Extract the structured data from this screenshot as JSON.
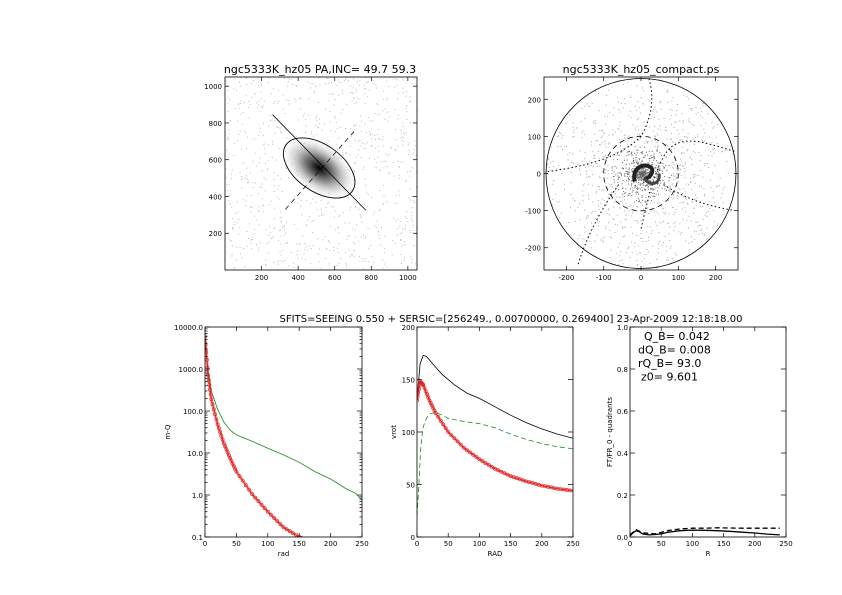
{
  "chart_data": [
    {
      "type": "image",
      "title": "ngc5333K_hz05 PA,INC= 49.7 59.3",
      "xlim": [
        0,
        1050
      ],
      "ylim": [
        0,
        1050
      ],
      "xticks": [
        200,
        400,
        600,
        800,
        1000
      ],
      "yticks": [
        200,
        400,
        600,
        800,
        1000
      ],
      "ellipse": {
        "cx": 515,
        "cy": 555,
        "rx": 260,
        "ry": 150,
        "angle_deg": -40
      }
    },
    {
      "type": "image",
      "title": "ngc5333K_hz05_compact.ps",
      "xlim": [
        -260,
        260
      ],
      "ylim": [
        -260,
        260
      ],
      "xticks": [
        -200,
        -100,
        0,
        100,
        200
      ],
      "yticks": [
        -200,
        -100,
        0,
        100,
        200
      ]
    },
    {
      "type": "line",
      "xlabel": "rad",
      "ylabel": "m-Q",
      "xlim": [
        0,
        250
      ],
      "ylim": [
        0.1,
        10000
      ],
      "yscale": "log",
      "xticks": [
        0,
        50,
        100,
        150,
        200,
        250
      ],
      "ytick_labels": [
        "0.1",
        "1.0",
        "10.0",
        "100.0",
        "1000.0",
        "10000.0"
      ],
      "series": [
        {
          "color": "#1a8a1a",
          "style": "solid",
          "x": [
            0,
            5,
            10,
            20,
            30,
            40,
            50,
            75,
            100,
            125,
            150,
            175,
            200,
            225,
            240,
            250
          ],
          "y": [
            6000,
            900,
            300,
            110,
            55,
            35,
            27,
            19,
            13,
            9,
            6,
            3.6,
            2.4,
            1.4,
            1.1,
            0.75
          ]
        },
        {
          "color": "#e02020",
          "style": "circles",
          "x": [
            0,
            5,
            10,
            20,
            30,
            40,
            50,
            75,
            100,
            125,
            150,
            160
          ],
          "y": [
            6000,
            700,
            190,
            48,
            17,
            7.5,
            3.6,
            1.05,
            0.4,
            0.17,
            0.1,
            0.085
          ]
        }
      ]
    },
    {
      "type": "line",
      "xlabel": "RAD",
      "ylabel": "vrot",
      "xlim": [
        0,
        250
      ],
      "ylim": [
        0,
        200
      ],
      "xticks": [
        0,
        50,
        100,
        150,
        200,
        250
      ],
      "yticks": [
        0,
        50,
        100,
        150,
        200
      ],
      "series": [
        {
          "color": "#000000",
          "style": "solid",
          "x": [
            0,
            5,
            10,
            15,
            25,
            40,
            60,
            80,
            100,
            125,
            150,
            175,
            200,
            225,
            250
          ],
          "y": [
            130,
            165,
            173,
            172,
            165,
            155,
            145,
            137,
            132,
            124,
            116,
            109,
            103,
            98,
            94
          ]
        },
        {
          "color": "#1a8a1a",
          "style": "dashed",
          "x": [
            0,
            3,
            6,
            10,
            15,
            20,
            30,
            40,
            50,
            75,
            100,
            125,
            150,
            175,
            200,
            225,
            250
          ],
          "y": [
            20,
            50,
            85,
            105,
            113,
            117,
            119,
            116,
            113,
            110,
            108,
            104,
            98,
            93,
            89,
            86,
            84
          ]
        },
        {
          "color": "#e02020",
          "style": "circles",
          "x": [
            0,
            5,
            10,
            20,
            30,
            50,
            75,
            100,
            125,
            150,
            175,
            200,
            225,
            250
          ],
          "y": [
            130,
            148,
            145,
            130,
            118,
            100,
            85,
            74,
            65,
            58,
            53,
            49,
            46,
            44
          ]
        }
      ]
    },
    {
      "type": "line",
      "xlabel": "R",
      "ylabel": "FT/FR_0 - quadrants",
      "xlim": [
        0,
        250
      ],
      "ylim": [
        0,
        1.0
      ],
      "xticks": [
        0,
        50,
        100,
        150,
        200,
        250
      ],
      "yticks": [
        0.0,
        0.2,
        0.4,
        0.6,
        0.8,
        1.0
      ],
      "annotations": [
        "Q_B=  0.042",
        "dQ_B=  0.008",
        "rQ_B=  93.0",
        "z0=  9.601"
      ],
      "series": [
        {
          "color": "#000000",
          "style": "solid",
          "x": [
            0,
            5,
            10,
            15,
            20,
            30,
            40,
            50,
            60,
            80,
            100,
            120,
            140,
            160,
            180,
            200,
            220,
            240
          ],
          "y": [
            0.005,
            0.02,
            0.03,
            0.025,
            0.015,
            0.01,
            0.012,
            0.015,
            0.022,
            0.03,
            0.033,
            0.032,
            0.03,
            0.027,
            0.023,
            0.019,
            0.014,
            0.01
          ]
        },
        {
          "color": "#000000",
          "style": "dashed",
          "x": [
            0,
            10,
            20,
            40,
            60,
            80,
            100,
            120,
            140,
            160,
            180,
            200,
            220,
            240
          ],
          "y": [
            0.01,
            0.035,
            0.02,
            0.015,
            0.03,
            0.038,
            0.042,
            0.042,
            0.044,
            0.043,
            0.042,
            0.042,
            0.042,
            0.042
          ]
        }
      ]
    }
  ],
  "page": {
    "title_top_left": "ngc5333K_hz05 PA,INC= 49.7 59.3",
    "title_top_right": "ngc5333K_hz05_compact.ps",
    "header_line": "SFITS=SEEING 0.550 + SERSIC=[256249., 0.00700000, 0.269400]  23-Apr-2009 12:18:18.00"
  }
}
